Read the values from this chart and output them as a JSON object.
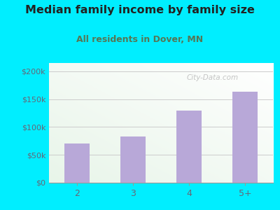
{
  "categories": [
    "2",
    "3",
    "4",
    "5+"
  ],
  "values": [
    70000,
    83000,
    130000,
    163000
  ],
  "bar_color": "#b8a8d8",
  "title": "Median family income by family size",
  "subtitle": "All residents in Dover, MN",
  "title_color": "#222222",
  "subtitle_color": "#557755",
  "outer_bg": "#00eeff",
  "inner_bg_left": "#e8f5e9",
  "inner_bg_right": "#ffffff",
  "yticks": [
    0,
    50000,
    100000,
    150000,
    200000
  ],
  "ytick_labels": [
    "$0",
    "$50k",
    "$100k",
    "$150k",
    "$200k"
  ],
  "ylim": [
    0,
    215000
  ],
  "tick_color": "#666677",
  "grid_color": "#cccccc",
  "watermark": "City-Data.com",
  "watermark_color": "#bbbbbb",
  "title_fontsize": 11.5,
  "subtitle_fontsize": 9
}
